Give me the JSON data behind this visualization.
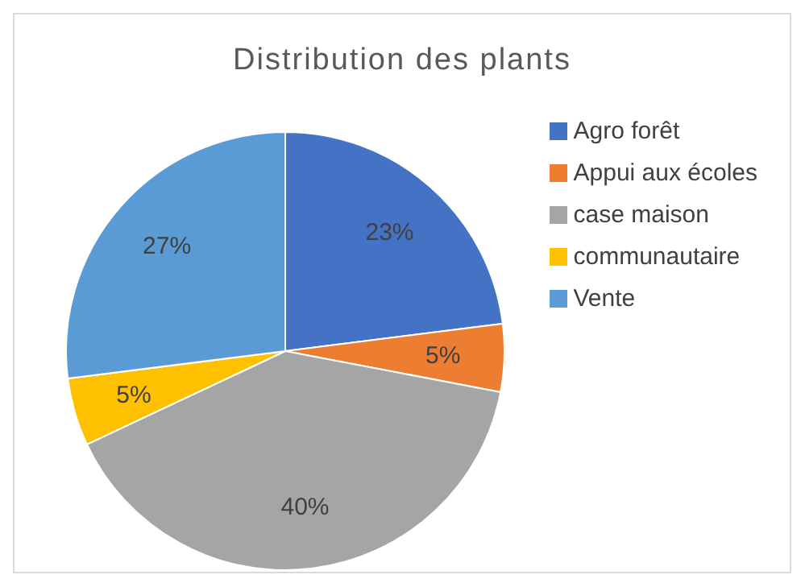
{
  "chart_data": {
    "type": "pie",
    "title": "Distribution des plants",
    "categories": [
      "Agro forêt",
      "Appui aux écoles",
      "case maison",
      "communautaire",
      "Vente"
    ],
    "values": [
      23,
      5,
      40,
      5,
      27
    ],
    "value_labels": [
      "23%",
      "5%",
      "40%",
      "5%",
      "27%"
    ],
    "colors": [
      "#4472c4",
      "#ed7d31",
      "#a5a5a5",
      "#ffc000",
      "#5b9bd5"
    ],
    "legend": "right"
  }
}
